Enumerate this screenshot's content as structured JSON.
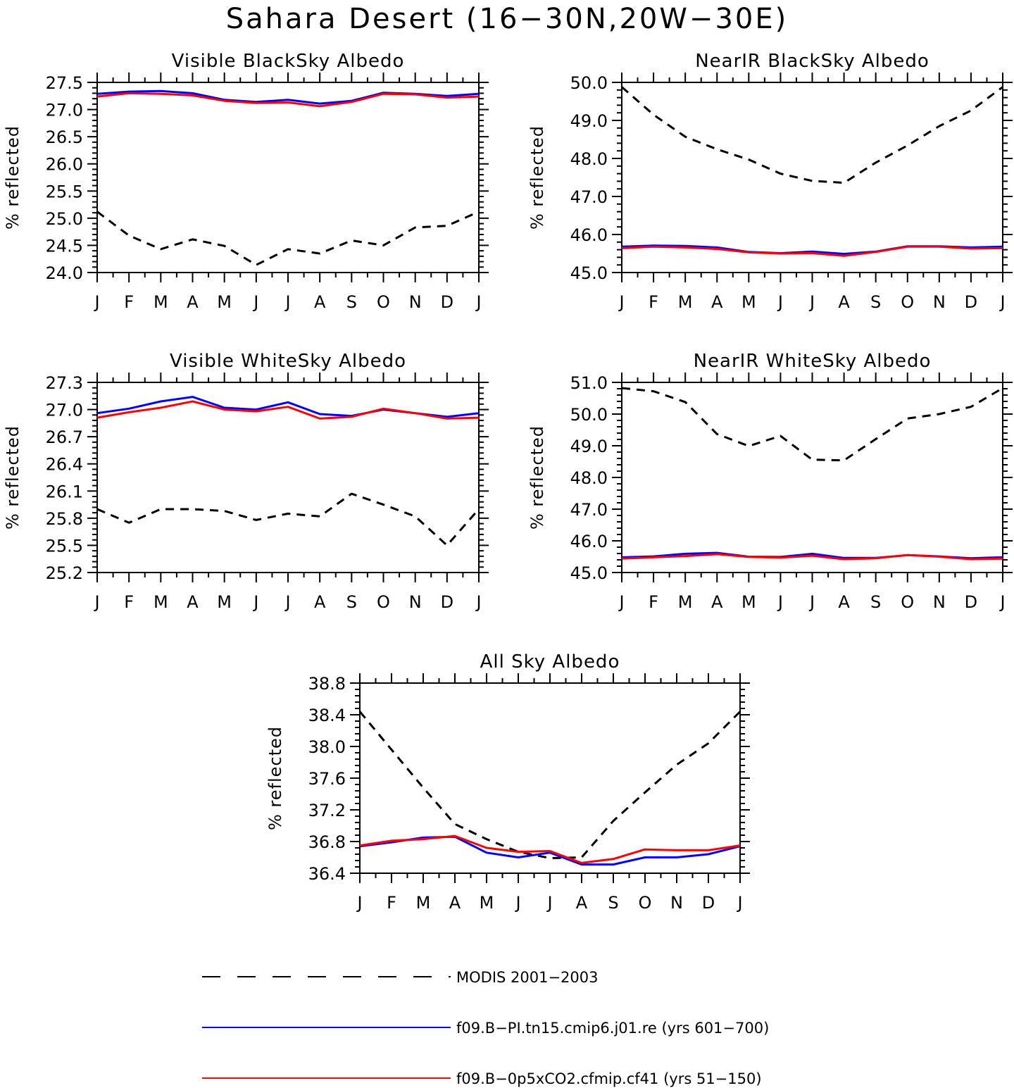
{
  "title": "Sahara Desert (16−30N,20W−30E)",
  "colors": {
    "modis": "#000000",
    "pi": "#0000ff",
    "co2": "#ff0000"
  },
  "months": [
    "J",
    "F",
    "M",
    "A",
    "M",
    "J",
    "J",
    "A",
    "S",
    "O",
    "N",
    "D",
    "J"
  ],
  "legend": {
    "modis": "MODIS 2001−2003",
    "pi": "f09.B−PI.tn15.cmip6.j01.re (yrs 601−700)",
    "co2": "f09.B−0p5xCO2.cfmip.cf41 (yrs 51−150)"
  },
  "chart_data": [
    {
      "type": "line",
      "title": "Visible BlackSky Albedo",
      "ylabel": "% reflected",
      "ylim": [
        24.0,
        27.5
      ],
      "yticks": [
        "24.0",
        "24.5",
        "25.0",
        "25.5",
        "26.0",
        "26.5",
        "27.0",
        "27.5"
      ],
      "categories": [
        "J",
        "F",
        "M",
        "A",
        "M",
        "J",
        "J",
        "A",
        "S",
        "O",
        "N",
        "D",
        "J"
      ],
      "series": [
        {
          "name": "MODIS 2001−2003",
          "style": "dashed",
          "values": [
            25.12,
            24.68,
            24.43,
            24.61,
            24.49,
            24.14,
            24.43,
            24.35,
            24.59,
            24.5,
            24.83,
            24.86,
            25.12
          ]
        },
        {
          "name": "f09.B−PI.tn15.cmip6.j01.re (yrs 601−700)",
          "values": [
            27.29,
            27.33,
            27.34,
            27.3,
            27.18,
            27.14,
            27.18,
            27.11,
            27.16,
            27.31,
            27.29,
            27.25,
            27.29
          ]
        },
        {
          "name": "f09.B−0p5xCO2.cfmip.cf41 (yrs 51−150)",
          "values": [
            27.24,
            27.3,
            27.29,
            27.26,
            27.16,
            27.12,
            27.13,
            27.06,
            27.14,
            27.29,
            27.28,
            27.22,
            27.24
          ]
        }
      ]
    },
    {
      "type": "line",
      "title": "NearIR BlackSky Albedo",
      "ylabel": "% reflected",
      "ylim": [
        45.0,
        50.0
      ],
      "yticks": [
        "45.0",
        "46.0",
        "47.0",
        "48.0",
        "49.0",
        "50.0"
      ],
      "categories": [
        "J",
        "F",
        "M",
        "A",
        "M",
        "J",
        "J",
        "A",
        "S",
        "O",
        "N",
        "D",
        "J"
      ],
      "series": [
        {
          "name": "MODIS 2001−2003",
          "style": "dashed",
          "values": [
            49.88,
            49.15,
            48.57,
            48.24,
            47.97,
            47.6,
            47.41,
            47.36,
            47.89,
            48.34,
            48.85,
            49.26,
            49.88
          ]
        },
        {
          "name": "f09.B−PI.tn15.cmip6.j01.re (yrs 601−700)",
          "values": [
            45.68,
            45.71,
            45.7,
            45.66,
            45.54,
            45.51,
            45.55,
            45.49,
            45.55,
            45.69,
            45.69,
            45.66,
            45.68
          ]
        },
        {
          "name": "f09.B−0p5xCO2.cfmip.cf41 (yrs 51−150)",
          "values": [
            45.64,
            45.68,
            45.66,
            45.62,
            45.53,
            45.5,
            45.51,
            45.44,
            45.54,
            45.68,
            45.68,
            45.63,
            45.64
          ]
        }
      ]
    },
    {
      "type": "line",
      "title": "Visible WhiteSky Albedo",
      "ylabel": "% reflected",
      "ylim": [
        25.2,
        27.3
      ],
      "yticks": [
        "25.2",
        "25.5",
        "25.8",
        "26.1",
        "26.4",
        "26.7",
        "27.0",
        "27.3"
      ],
      "categories": [
        "J",
        "F",
        "M",
        "A",
        "M",
        "J",
        "J",
        "A",
        "S",
        "O",
        "N",
        "D",
        "J"
      ],
      "series": [
        {
          "name": "MODIS 2001−2003",
          "style": "dashed",
          "values": [
            25.9,
            25.75,
            25.9,
            25.9,
            25.88,
            25.78,
            25.85,
            25.82,
            26.07,
            25.95,
            25.82,
            25.5,
            25.9
          ]
        },
        {
          "name": "f09.B−PI.tn15.cmip6.j01.re (yrs 601−700)",
          "values": [
            26.96,
            27.01,
            27.09,
            27.14,
            27.02,
            27.0,
            27.08,
            26.95,
            26.93,
            27.0,
            26.96,
            26.92,
            26.96
          ]
        },
        {
          "name": "f09.B−0p5xCO2.cfmip.cf41 (yrs 51−150)",
          "values": [
            26.91,
            26.97,
            27.02,
            27.09,
            27.0,
            26.98,
            27.03,
            26.9,
            26.92,
            27.01,
            26.96,
            26.9,
            26.91
          ]
        }
      ]
    },
    {
      "type": "line",
      "title": "NearIR WhiteSky Albedo",
      "ylabel": "% reflected",
      "ylim": [
        45.0,
        51.0
      ],
      "yticks": [
        "45.0",
        "46.0",
        "47.0",
        "48.0",
        "49.0",
        "50.0",
        "51.0"
      ],
      "categories": [
        "J",
        "F",
        "M",
        "A",
        "M",
        "J",
        "J",
        "A",
        "S",
        "O",
        "N",
        "D",
        "J"
      ],
      "series": [
        {
          "name": "MODIS 2001−2003",
          "style": "dashed",
          "values": [
            50.82,
            50.72,
            50.38,
            49.37,
            48.99,
            49.31,
            48.56,
            48.54,
            49.21,
            49.86,
            50.0,
            50.23,
            50.82
          ]
        },
        {
          "name": "f09.B−PI.tn15.cmip6.j01.re (yrs 601−700)",
          "values": [
            45.48,
            45.51,
            45.59,
            45.62,
            45.5,
            45.49,
            45.59,
            45.46,
            45.46,
            45.55,
            45.51,
            45.45,
            45.48
          ]
        },
        {
          "name": "f09.B−0p5xCO2.cfmip.cf41 (yrs 51−150)",
          "values": [
            45.44,
            45.48,
            45.52,
            45.58,
            45.49,
            45.47,
            45.53,
            45.42,
            45.45,
            45.55,
            45.5,
            45.42,
            45.44
          ]
        }
      ]
    },
    {
      "type": "line",
      "title": "All Sky Albedo",
      "ylabel": "% reflected",
      "ylim": [
        36.4,
        38.8
      ],
      "yticks": [
        "36.4",
        "36.8",
        "37.2",
        "37.6",
        "38.0",
        "38.4",
        "38.8"
      ],
      "categories": [
        "J",
        "F",
        "M",
        "A",
        "M",
        "J",
        "J",
        "A",
        "S",
        "O",
        "N",
        "D",
        "J"
      ],
      "series": [
        {
          "name": "MODIS 2001−2003",
          "style": "dashed",
          "values": [
            38.44,
            37.96,
            37.48,
            37.02,
            36.83,
            36.67,
            36.59,
            36.6,
            37.06,
            37.42,
            37.77,
            38.04,
            38.44
          ]
        },
        {
          "name": "f09.B−PI.tn15.cmip6.j01.re (yrs 601−700)",
          "values": [
            36.74,
            36.79,
            36.85,
            36.86,
            36.66,
            36.6,
            36.66,
            36.51,
            36.51,
            36.6,
            36.6,
            36.64,
            36.74
          ]
        },
        {
          "name": "f09.B−0p5xCO2.cfmip.cf41 (yrs 51−150)",
          "values": [
            36.75,
            36.81,
            36.83,
            36.87,
            36.72,
            36.67,
            36.68,
            36.53,
            36.58,
            36.7,
            36.69,
            36.69,
            36.75
          ]
        }
      ]
    }
  ]
}
